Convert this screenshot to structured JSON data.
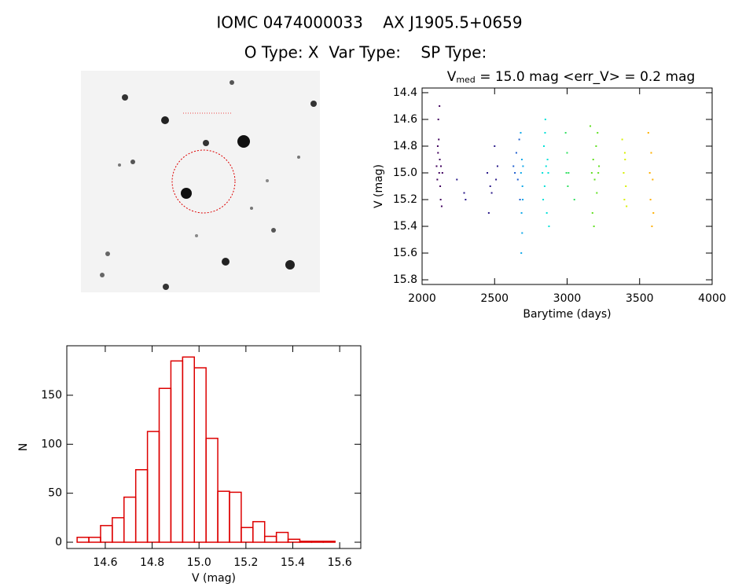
{
  "header": {
    "title": "IOMC 0474000033    AX J1905.5+0659",
    "subtitle": "O Type: X  Var Type:    SP Type:"
  },
  "chart_data": [
    {
      "type": "scatter",
      "title": "V",
      "title_sub": "med",
      "title_rest": " = 15.0 mag <err_V> = 0.2 mag",
      "xlabel": "Barytime (days)",
      "ylabel": "V (mag)",
      "xlim": [
        2000,
        4000
      ],
      "xticks": [
        2000,
        2500,
        3000,
        3500,
        4000
      ],
      "ylim": [
        15.835,
        14.365
      ],
      "yticks": [
        14.4,
        14.6,
        14.8,
        {
          "value": 15,
          "label": "15.0"
        },
        15.2,
        15.4,
        15.6,
        15.8
      ],
      "series": [
        {
          "color": "#40005e",
          "x": [
            2100,
            2105,
            2110,
            2112,
            2115,
            2118,
            2120,
            2122,
            2125,
            2128,
            2130,
            2135,
            2108,
            2140
          ],
          "values": [
            14.95,
            15.05,
            14.85,
            14.6,
            14.75,
            15.0,
            14.5,
            14.9,
            15.1,
            15.2,
            14.95,
            15.25,
            14.8,
            15.0
          ]
        },
        {
          "color": "#2a1a8a",
          "x": [
            2240,
            2290,
            2300,
            2450,
            2460,
            2470,
            2480,
            2500,
            2510,
            2520
          ],
          "values": [
            15.05,
            15.15,
            15.2,
            15.0,
            15.3,
            15.1,
            15.15,
            14.8,
            15.05,
            14.95
          ]
        },
        {
          "color": "#2060d0",
          "x": [
            2630,
            2640,
            2650,
            2660,
            2670,
            2675
          ],
          "values": [
            14.95,
            15.0,
            14.85,
            15.05,
            14.75,
            15.2
          ]
        },
        {
          "color": "#10a8e8",
          "x": [
            2680,
            2682,
            2684,
            2686,
            2688,
            2690,
            2692,
            2694,
            2696
          ],
          "values": [
            14.7,
            15.0,
            15.6,
            15.3,
            14.9,
            15.45,
            15.1,
            15.2,
            14.95
          ]
        },
        {
          "color": "#00e0d8",
          "x": [
            2830,
            2835,
            2840,
            2845,
            2850,
            2855,
            2860,
            2865,
            2870,
            2875,
            2848
          ],
          "values": [
            15.0,
            15.2,
            14.8,
            15.1,
            14.6,
            14.95,
            15.3,
            14.9,
            15.0,
            15.4,
            14.7
          ]
        },
        {
          "color": "#30e060",
          "x": [
            2990,
            2995,
            3000,
            3005,
            3010,
            3050
          ],
          "values": [
            14.7,
            15.0,
            14.85,
            15.1,
            15.0,
            15.2
          ]
        },
        {
          "color": "#60e020",
          "x": [
            3160,
            3170,
            3175,
            3180,
            3185,
            3190,
            3200,
            3205,
            3210,
            3215,
            3220
          ],
          "values": [
            14.65,
            15.0,
            15.3,
            14.9,
            15.4,
            15.05,
            14.8,
            15.15,
            14.7,
            15.0,
            14.95
          ]
        },
        {
          "color": "#d8f000",
          "x": [
            3380,
            3390,
            3395,
            3400,
            3405,
            3410,
            3398
          ],
          "values": [
            14.75,
            15.0,
            15.2,
            14.9,
            15.1,
            15.25,
            14.85
          ]
        },
        {
          "color": "#ffb000",
          "x": [
            3560,
            3570,
            3575,
            3580,
            3585,
            3590,
            3595
          ],
          "values": [
            14.7,
            15.0,
            15.2,
            14.85,
            15.4,
            15.05,
            15.3
          ]
        }
      ]
    },
    {
      "type": "histogram",
      "xlabel": "V (mag)",
      "ylabel": "N",
      "color": "#dd0000",
      "bins": [
        14.48,
        14.53,
        14.58,
        14.63,
        14.68,
        14.73,
        14.78,
        14.83,
        14.88,
        14.93,
        14.98,
        15.03,
        15.08,
        15.13,
        15.18,
        15.23,
        15.28,
        15.33,
        15.38,
        15.43,
        15.48,
        15.53,
        15.58
      ],
      "values": [
        5,
        5,
        17,
        25,
        46,
        74,
        113,
        157,
        185,
        189,
        178,
        106,
        52,
        51,
        15,
        21,
        6,
        10,
        3,
        1,
        1,
        1
      ],
      "xlim": [
        14.436,
        15.69
      ],
      "xticks": [
        14.6,
        14.8,
        {
          "value": 15,
          "label": "15.0"
        },
        15.2,
        15.4,
        15.6
      ],
      "ylim": [
        -6.4,
        200.5
      ],
      "yticks": [
        0,
        50,
        100,
        150
      ]
    }
  ]
}
